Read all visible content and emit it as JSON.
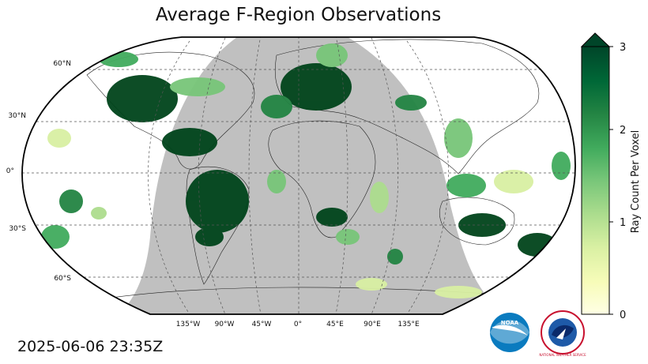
{
  "title": "Average F-Region Observations",
  "timestamp": "2025-06-06 23:35Z",
  "colorbar": {
    "label": "Ray Count Per Voxel",
    "ticks": [
      "0",
      "1",
      "2",
      "3"
    ],
    "min": 0,
    "max": 3,
    "colors": [
      "#ffffe5",
      "#f7fcb9",
      "#d9f0a3",
      "#addd8e",
      "#78c679",
      "#41ab5d",
      "#238443",
      "#006837",
      "#004529"
    ]
  },
  "map": {
    "lat_labels": [
      "60°N",
      "30°N",
      "0°",
      "30°S",
      "60°S"
    ],
    "lon_labels": [
      "135°W",
      "90°W",
      "45°W",
      "0°",
      "45°E",
      "90°E",
      "135°E"
    ],
    "night_color": "#c0c0c0"
  },
  "logos": {
    "noaa": "NOAA",
    "nws": "NATIONAL WEATHER SERVICE"
  }
}
